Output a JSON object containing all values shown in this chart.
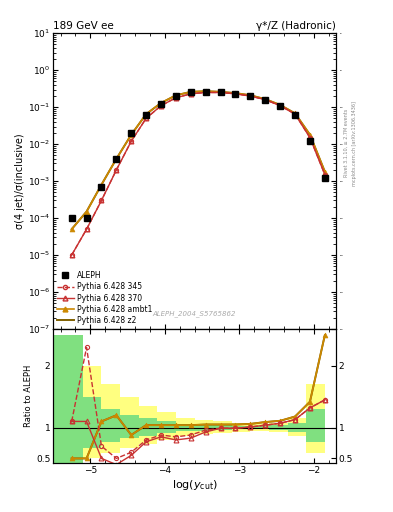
{
  "title_left": "189 GeV ee",
  "title_right": "γ*/Z (Hadronic)",
  "ylabel_main": "σ(4 jet)/σ(inclusive)",
  "ylabel_ratio": "Ratio to ALEPH",
  "xlabel": "log(y_{cut})",
  "watermark": "ALEPH_2004_S5765862",
  "right_label_top": "Rivet 3.1.10, ≥ 2.7M events",
  "right_label_bot": "mcplots.cern.ch [arXiv:1306.3436]",
  "aleph_x": [
    -5.25,
    -5.05,
    -4.85,
    -4.65,
    -4.45,
    -4.25,
    -4.05,
    -3.85,
    -3.65,
    -3.45,
    -3.25,
    -3.05,
    -2.85,
    -2.65,
    -2.45,
    -2.25,
    -2.05,
    -1.85
  ],
  "aleph_y": [
    0.0001,
    0.0001,
    0.0007,
    0.004,
    0.02,
    0.06,
    0.12,
    0.2,
    0.25,
    0.26,
    0.25,
    0.23,
    0.2,
    0.16,
    0.11,
    0.06,
    0.012,
    0.0012
  ],
  "py345_x": [
    -5.25,
    -5.05,
    -4.85,
    -4.65,
    -4.45,
    -4.25,
    -4.05,
    -3.85,
    -3.65,
    -3.45,
    -3.25,
    -3.05,
    -2.85,
    -2.65,
    -2.45,
    -2.25,
    -2.05,
    -1.85
  ],
  "py345_y": [
    1e-05,
    5e-05,
    0.0003,
    0.002,
    0.012,
    0.05,
    0.11,
    0.18,
    0.23,
    0.25,
    0.25,
    0.23,
    0.2,
    0.16,
    0.11,
    0.065,
    0.015,
    0.0015
  ],
  "py370_x": [
    -5.25,
    -5.05,
    -4.85,
    -4.65,
    -4.45,
    -4.25,
    -4.05,
    -3.85,
    -3.65,
    -3.45,
    -3.25,
    -3.05,
    -2.85,
    -2.65,
    -2.45,
    -2.25,
    -2.05,
    -1.85
  ],
  "py370_y": [
    1e-05,
    5e-05,
    0.0003,
    0.002,
    0.012,
    0.05,
    0.11,
    0.18,
    0.23,
    0.25,
    0.25,
    0.23,
    0.2,
    0.16,
    0.11,
    0.065,
    0.015,
    0.0015
  ],
  "pyambt1_x": [
    -5.25,
    -5.05,
    -4.85,
    -4.65,
    -4.45,
    -4.25,
    -4.05,
    -3.85,
    -3.65,
    -3.45,
    -3.25,
    -3.05,
    -2.85,
    -2.65,
    -2.45,
    -2.25,
    -2.05,
    -1.85
  ],
  "pyambt1_y": [
    5e-05,
    0.00015,
    0.0008,
    0.004,
    0.018,
    0.065,
    0.13,
    0.21,
    0.26,
    0.27,
    0.26,
    0.24,
    0.21,
    0.165,
    0.115,
    0.068,
    0.018,
    0.0018
  ],
  "pyz2_x": [
    -5.25,
    -5.05,
    -4.85,
    -4.65,
    -4.45,
    -4.25,
    -4.05,
    -3.85,
    -3.65,
    -3.45,
    -3.25,
    -3.05,
    -2.85,
    -2.65,
    -2.45,
    -2.25,
    -2.05,
    -1.85
  ],
  "pyz2_y": [
    5e-05,
    0.00015,
    0.0008,
    0.004,
    0.018,
    0.065,
    0.13,
    0.21,
    0.26,
    0.27,
    0.26,
    0.24,
    0.21,
    0.165,
    0.115,
    0.068,
    0.018,
    0.0018
  ],
  "ratio_345_y": [
    1.1,
    2.3,
    0.7,
    0.5,
    0.6,
    0.8,
    0.88,
    0.85,
    0.88,
    0.96,
    0.99,
    0.99,
    1.01,
    1.04,
    1.07,
    1.13,
    1.32,
    1.45
  ],
  "ratio_370_y": [
    1.1,
    1.1,
    0.5,
    0.4,
    0.55,
    0.77,
    0.85,
    0.8,
    0.83,
    0.93,
    0.99,
    0.99,
    1.01,
    1.04,
    1.07,
    1.13,
    1.32,
    1.45
  ],
  "ratio_ambt1_y": [
    0.5,
    0.5,
    1.1,
    1.2,
    0.88,
    1.04,
    1.04,
    1.04,
    1.04,
    1.05,
    1.05,
    1.05,
    1.06,
    1.09,
    1.11,
    1.18,
    1.42,
    2.5
  ],
  "ratio_z2_y": [
    0.5,
    0.5,
    1.1,
    1.2,
    0.88,
    1.04,
    1.04,
    1.04,
    1.04,
    1.05,
    1.05,
    1.05,
    1.06,
    1.09,
    1.11,
    1.18,
    1.42,
    2.5
  ],
  "band_x_edges": [
    -5.5,
    -5.1,
    -4.85,
    -4.6,
    -4.35,
    -4.1,
    -3.85,
    -3.6,
    -3.35,
    -3.1,
    -2.85,
    -2.6,
    -2.35,
    -2.1,
    -1.85
  ],
  "band_yellow_hi": [
    2.5,
    2.0,
    1.7,
    1.5,
    1.35,
    1.25,
    1.15,
    1.12,
    1.1,
    1.08,
    1.06,
    1.08,
    1.15,
    1.7,
    2.5
  ],
  "band_yellow_lo": [
    0.4,
    0.5,
    0.59,
    0.67,
    0.74,
    0.8,
    0.87,
    0.89,
    0.91,
    0.93,
    0.94,
    0.93,
    0.87,
    0.59,
    0.4
  ],
  "band_green_hi": [
    2.5,
    1.5,
    1.3,
    1.2,
    1.15,
    1.1,
    1.06,
    1.05,
    1.04,
    1.03,
    1.02,
    1.04,
    1.08,
    1.3,
    2.5
  ],
  "band_green_lo": [
    0.4,
    0.67,
    0.77,
    0.83,
    0.87,
    0.91,
    0.94,
    0.95,
    0.96,
    0.97,
    0.98,
    0.96,
    0.93,
    0.77,
    0.4
  ],
  "color_345": "#c83232",
  "color_370": "#c83232",
  "color_ambt1": "#cc8800",
  "color_z2": "#806000",
  "color_aleph": "black",
  "xlim": [
    -5.5,
    -1.7
  ],
  "ylim_main": [
    1e-07,
    10
  ],
  "ylim_ratio": [
    0.42,
    2.6
  ],
  "xticks": [
    -5,
    -4,
    -3,
    -2
  ],
  "yticks_ratio": [
    0.5,
    1,
    2
  ]
}
